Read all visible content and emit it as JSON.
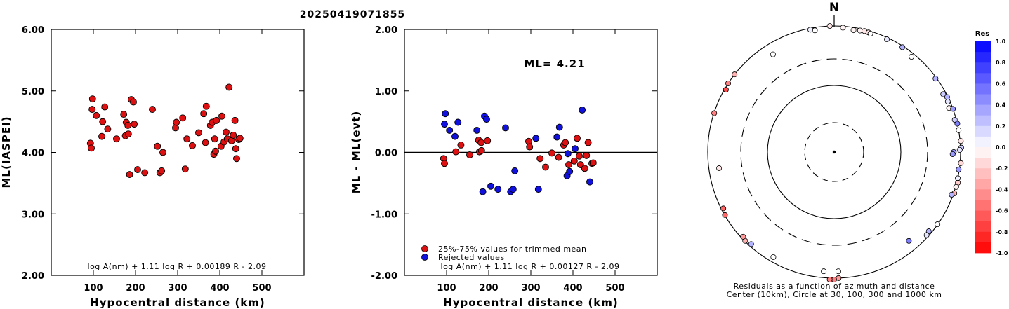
{
  "title": "20250419071855",
  "chart_data": [
    {
      "type": "scatter",
      "xlabel": "Hypocentral distance (km)",
      "ylabel": "ML(IASPEI)",
      "xlim": [
        0,
        600
      ],
      "ylim": [
        2.0,
        6.0
      ],
      "xticks": [
        "100",
        "200",
        "300",
        "400",
        "500"
      ],
      "yticks": [
        "2.00",
        "3.00",
        "4.00",
        "5.00",
        "6.00"
      ],
      "formula": "log A(nm) + 1.11 log R + 0.00189 R - 2.09",
      "marker_color": "#dd1111",
      "series": [
        {
          "points": [
            [
              93,
              4.15
            ],
            [
              95,
              4.07
            ],
            [
              97,
              4.7
            ],
            [
              98,
              4.87
            ],
            [
              107,
              4.6
            ],
            [
              120,
              4.26
            ],
            [
              122,
              4.5
            ],
            [
              127,
              4.74
            ],
            [
              134,
              4.38
            ],
            [
              155,
              4.22
            ],
            [
              172,
              4.62
            ],
            [
              176,
              4.27
            ],
            [
              178,
              4.49
            ],
            [
              182,
              4.44
            ],
            [
              183,
              4.3
            ],
            [
              186,
              3.64
            ],
            [
              190,
              4.86
            ],
            [
              195,
              4.82
            ],
            [
              197,
              4.46
            ],
            [
              205,
              3.72
            ],
            [
              222,
              3.67
            ],
            [
              240,
              4.7
            ],
            [
              252,
              4.1
            ],
            [
              258,
              3.67
            ],
            [
              262,
              3.7
            ],
            [
              265,
              4.0
            ],
            [
              295,
              4.4
            ],
            [
              297,
              4.49
            ],
            [
              312,
              4.56
            ],
            [
              318,
              3.73
            ],
            [
              322,
              4.22
            ],
            [
              335,
              4.11
            ],
            [
              350,
              4.32
            ],
            [
              362,
              4.63
            ],
            [
              366,
              4.16
            ],
            [
              368,
              4.75
            ],
            [
              378,
              4.44
            ],
            [
              382,
              4.49
            ],
            [
              386,
              3.97
            ],
            [
              388,
              4.22
            ],
            [
              390,
              4.02
            ],
            [
              392,
              4.52
            ],
            [
              403,
              4.1
            ],
            [
              405,
              4.59
            ],
            [
              410,
              4.17
            ],
            [
              415,
              4.33
            ],
            [
              418,
              4.22
            ],
            [
              422,
              5.06
            ],
            [
              428,
              4.19
            ],
            [
              432,
              4.28
            ],
            [
              436,
              4.52
            ],
            [
              438,
              4.06
            ],
            [
              440,
              3.9
            ],
            [
              445,
              4.21
            ],
            [
              448,
              4.23
            ]
          ]
        }
      ]
    },
    {
      "type": "scatter",
      "xlabel": "Hypocentral distance (km)",
      "ylabel": "ML - ML(evt)",
      "xlim": [
        0,
        600
      ],
      "ylim": [
        -2.0,
        2.0
      ],
      "xticks": [
        "100",
        "200",
        "300",
        "400",
        "500"
      ],
      "yticks": [
        "-2.00",
        "-1.00",
        "0.00",
        "1.00",
        "2.00"
      ],
      "annotation": "ML= 4.21",
      "formula": "log A(nm) + 1.11 log R + 0.00127 R - 2.09",
      "reference_line": 0,
      "series": [
        {
          "name": "25%-75% values for trimmed mean",
          "color": "#dd1111",
          "points": [
            [
              93,
              -0.1
            ],
            [
              95,
              -0.18
            ],
            [
              122,
              0.01
            ],
            [
              134,
              0.12
            ],
            [
              155,
              -0.04
            ],
            [
              176,
              0.2
            ],
            [
              178,
              0.01
            ],
            [
              182,
              0.16
            ],
            [
              183,
              0.03
            ],
            [
              197,
              0.19
            ],
            [
              295,
              0.18
            ],
            [
              297,
              0.09
            ],
            [
              322,
              -0.1
            ],
            [
              335,
              -0.24
            ],
            [
              350,
              -0.01
            ],
            [
              366,
              -0.08
            ],
            [
              378,
              0.12
            ],
            [
              382,
              0.16
            ],
            [
              390,
              -0.2
            ],
            [
              403,
              -0.14
            ],
            [
              410,
              0.23
            ],
            [
              415,
              -0.06
            ],
            [
              418,
              -0.2
            ],
            [
              428,
              -0.26
            ],
            [
              432,
              -0.05
            ],
            [
              436,
              0.16
            ],
            [
              445,
              -0.18
            ],
            [
              448,
              -0.17
            ]
          ]
        },
        {
          "name": "Rejected values",
          "color": "#1111dd",
          "points": [
            [
              95,
              0.46
            ],
            [
              97,
              0.63
            ],
            [
              107,
              0.36
            ],
            [
              120,
              0.26
            ],
            [
              127,
              0.49
            ],
            [
              172,
              0.36
            ],
            [
              186,
              -0.64
            ],
            [
              190,
              0.59
            ],
            [
              195,
              0.54
            ],
            [
              205,
              -0.55
            ],
            [
              222,
              -0.6
            ],
            [
              240,
              0.4
            ],
            [
              252,
              -0.64
            ],
            [
              258,
              -0.6
            ],
            [
              262,
              -0.3
            ],
            [
              312,
              0.23
            ],
            [
              318,
              -0.6
            ],
            [
              362,
              0.25
            ],
            [
              368,
              0.41
            ],
            [
              386,
              -0.38
            ],
            [
              388,
              -0.02
            ],
            [
              392,
              -0.31
            ],
            [
              405,
              0.06
            ],
            [
              422,
              0.69
            ],
            [
              440,
              -0.48
            ]
          ]
        }
      ]
    },
    {
      "type": "scatter",
      "subtype": "polar",
      "north_label": "N",
      "caption_line1": "Residuals as a function of azimuth and distance",
      "caption_line2": "Center (10km), Circle at 30, 100, 300 and 1000 km",
      "colorbar": {
        "title": "Res",
        "range": [
          -1.0,
          1.0
        ],
        "tick_labels": [
          "1.0",
          "0.8",
          "0.6",
          "0.4",
          "0.2",
          "0.0",
          "-0.2",
          "-0.4",
          "-0.6",
          "-0.8",
          "-1.0"
        ]
      },
      "stations": [
        [
          -9,
          900,
          0.0
        ],
        [
          -11,
          950,
          0.05
        ],
        [
          -2,
          1000,
          -0.1
        ],
        [
          4,
          950,
          -0.05
        ],
        [
          9,
          905,
          -0.05
        ],
        [
          12,
          935,
          -0.05
        ],
        [
          14,
          950,
          -0.1
        ],
        [
          16,
          940,
          -0.1
        ],
        [
          17,
          920,
          0.0
        ],
        [
          25,
          940,
          0.1
        ],
        [
          33,
          960,
          0.3
        ],
        [
          39,
          880,
          0.0
        ],
        [
          54,
          960,
          0.3
        ],
        [
          62,
          900,
          0.2
        ],
        [
          64,
          975,
          0.3
        ],
        [
          66,
          930,
          0.1
        ],
        [
          69,
          885,
          -0.05
        ],
        [
          70,
          1000,
          0.4
        ],
        [
          75,
          945,
          0.2
        ],
        [
          77,
          1000,
          0.5
        ],
        [
          80,
          1000,
          0.0
        ],
        [
          85,
          1020,
          -0.1
        ],
        [
          88,
          1020,
          0.2
        ],
        [
          89,
          970,
          0.1
        ],
        [
          90,
          780,
          0.4
        ],
        [
          91,
          750,
          0.4
        ],
        [
          95,
          1020,
          -0.15
        ],
        [
          98,
          975,
          0.4
        ],
        [
          102,
          1000,
          0.05
        ],
        [
          104,
          1030,
          -0.2
        ],
        [
          106,
          1015,
          -0.05
        ],
        [
          109,
          1020,
          -0.3
        ],
        [
          110,
          950,
          0.3
        ],
        [
          125,
          990,
          0.0
        ],
        [
          130,
          900,
          0.3
        ],
        [
          132,
          930,
          0.1
        ],
        [
          140,
          690,
          0.5
        ],
        [
          185,
          790,
          0.0
        ],
        [
          178,
          780,
          0.0
        ],
        [
          178,
          1000,
          -0.4
        ],
        [
          180,
          1040,
          -0.5
        ],
        [
          182,
          1040,
          -0.5
        ],
        [
          210,
          840,
          0.0
        ],
        [
          222,
          920,
          0.3
        ],
        [
          225,
          980,
          -0.3
        ],
        [
          227,
          930,
          -0.4
        ],
        [
          240,
          990,
          -0.6
        ],
        [
          243,
          930,
          -0.6
        ],
        [
          262,
          690,
          -0.1
        ],
        [
          288,
          990,
          -0.5
        ],
        [
          300,
          950,
          -0.7
        ],
        [
          303,
          1000,
          -0.5
        ],
        [
          308,
          1000,
          -0.3
        ],
        [
          328,
          670,
          0.0
        ]
      ]
    }
  ]
}
